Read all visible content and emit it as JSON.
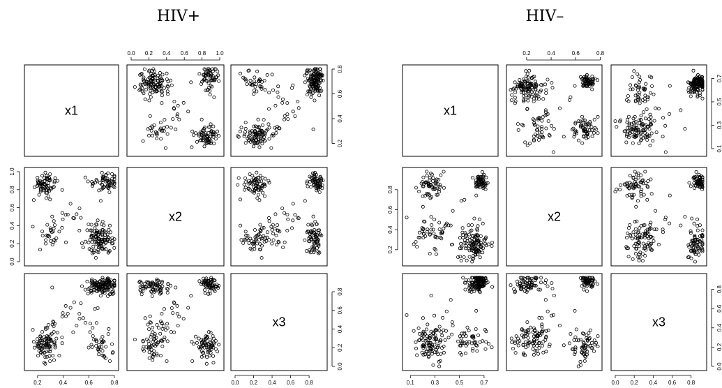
{
  "chart_data": [
    {
      "type": "scatter",
      "title": "HIV+",
      "variables": [
        "x1",
        "x2",
        "x3"
      ],
      "top_axis": {
        "ticks": [
          "0.0",
          "0.2",
          "0.4",
          "0.6",
          "0.8",
          "1.0"
        ],
        "range": [
          0,
          1
        ]
      },
      "right_axis_row1": {
        "ticks": [
          "0.2",
          "0.4",
          "0.6",
          "0.8"
        ],
        "range": [
          0.13,
          0.8
        ]
      },
      "left_axis_row2": {
        "ticks": [
          "0.0",
          "0.2",
          "0.4",
          "0.6",
          "0.8",
          "1.0"
        ],
        "range": [
          0.0,
          1.0
        ]
      },
      "right_axis_row3": {
        "ticks": [
          "0.0",
          "0.2",
          "0.4",
          "0.6",
          "0.8"
        ],
        "range": [
          0.0,
          0.95
        ]
      },
      "bottom_axis_col1": {
        "ticks": [
          "0.2",
          "0.4",
          "0.6",
          "0.8"
        ],
        "range": [
          0.13,
          0.8
        ]
      },
      "bottom_axis_col3": {
        "ticks": [
          "0.0",
          "0.2",
          "0.4",
          "0.6",
          "0.8"
        ],
        "range": [
          0.0,
          0.95
        ]
      },
      "clusters": [
        {
          "x1": 0.27,
          "x2": 0.85,
          "x3": 0.22,
          "sd": [
            0.05,
            0.06,
            0.08
          ],
          "n": 70
        },
        {
          "x1": 0.73,
          "x2": 0.88,
          "x3": 0.88,
          "sd": [
            0.05,
            0.04,
            0.04
          ],
          "n": 60
        },
        {
          "x1": 0.69,
          "x2": 0.24,
          "x3": 0.85,
          "sd": [
            0.05,
            0.08,
            0.05
          ],
          "n": 70
        },
        {
          "x1": 0.7,
          "x2": 0.25,
          "x3": 0.25,
          "sd": [
            0.05,
            0.08,
            0.1
          ],
          "n": 40
        },
        {
          "x1": 0.3,
          "x2": 0.3,
          "x3": 0.3,
          "sd": [
            0.06,
            0.07,
            0.1
          ],
          "n": 25
        },
        {
          "x1": 0.5,
          "x2": 0.55,
          "x3": 0.55,
          "sd": [
            0.12,
            0.15,
            0.15
          ],
          "n": 20
        }
      ]
    },
    {
      "type": "scatter",
      "title": "HIV–",
      "variables": [
        "x1",
        "x2",
        "x3"
      ],
      "top_axis": {
        "ticks": [
          "0.2",
          "0.4",
          "0.6",
          "0.8"
        ],
        "range": [
          0.07,
          0.78
        ]
      },
      "right_axis_row1": {
        "ticks": [
          "0.1",
          "0.3",
          "0.5",
          "0.7"
        ],
        "range": [
          0.07,
          0.78
        ]
      },
      "left_axis_row2": {
        "ticks": [
          "0.2",
          "0.4",
          "0.6",
          "0.8"
        ],
        "range": [
          0.08,
          0.98
        ]
      },
      "right_axis_row3": {
        "ticks": [
          "0.0",
          "0.2",
          "0.4",
          "0.6",
          "0.8"
        ],
        "range": [
          0.0,
          0.92
        ]
      },
      "bottom_axis_col1": {
        "ticks": [
          "0.1",
          "0.3",
          "0.5",
          "0.7"
        ],
        "range": [
          0.07,
          0.78
        ]
      },
      "bottom_axis_col3": {
        "ticks": [
          "0.0",
          "0.2",
          "0.4",
          "0.6",
          "0.8"
        ],
        "range": [
          0.0,
          0.92
        ]
      },
      "clusters": [
        {
          "x1": 0.27,
          "x2": 0.85,
          "x3": 0.2,
          "sd": [
            0.05,
            0.06,
            0.08
          ],
          "n": 60
        },
        {
          "x1": 0.68,
          "x2": 0.88,
          "x3": 0.88,
          "sd": [
            0.03,
            0.04,
            0.04
          ],
          "n": 60
        },
        {
          "x1": 0.64,
          "x2": 0.27,
          "x3": 0.85,
          "sd": [
            0.04,
            0.08,
            0.05
          ],
          "n": 70
        },
        {
          "x1": 0.6,
          "x2": 0.25,
          "x3": 0.25,
          "sd": [
            0.07,
            0.08,
            0.1
          ],
          "n": 45
        },
        {
          "x1": 0.27,
          "x2": 0.35,
          "x3": 0.3,
          "sd": [
            0.07,
            0.09,
            0.1
          ],
          "n": 40
        },
        {
          "x1": 0.4,
          "x2": 0.5,
          "x3": 0.5,
          "sd": [
            0.12,
            0.15,
            0.15
          ],
          "n": 15
        }
      ]
    }
  ]
}
